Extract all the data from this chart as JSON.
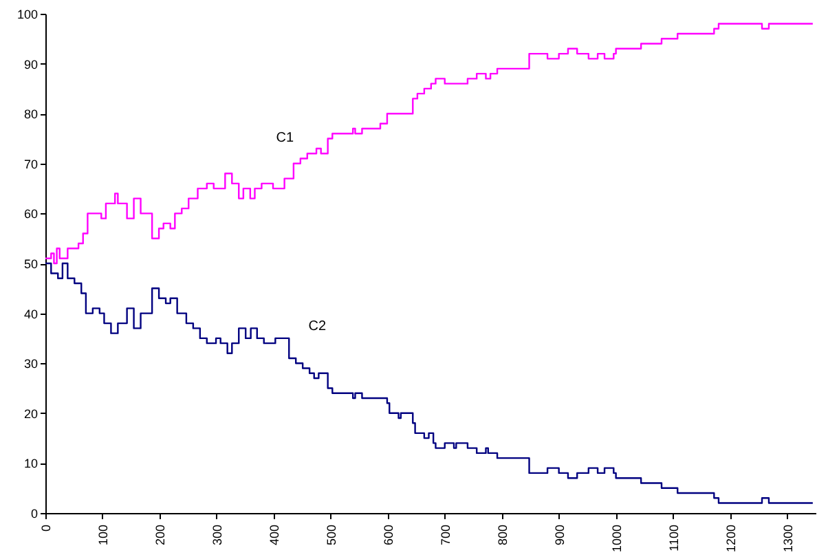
{
  "chart_data": {
    "type": "step",
    "xlim": [
      0,
      1350
    ],
    "xticks": [
      0,
      100,
      200,
      300,
      400,
      500,
      600,
      700,
      800,
      900,
      1000,
      1100,
      1200,
      1300
    ],
    "ylim": [
      0,
      100
    ],
    "yticks": [
      0,
      10,
      20,
      30,
      40,
      50,
      60,
      70,
      80,
      90,
      100
    ],
    "grid": false,
    "marker": "none",
    "line_style": "solid",
    "series": [
      {
        "name": "C1",
        "color": "#ff00ff",
        "x": [
          0,
          10,
          15,
          20,
          25,
          30,
          39,
          58,
          66,
          74,
          90,
          98,
          106,
          122,
          127,
          143,
          155,
          167,
          187,
          199,
          207,
          219,
          227,
          239,
          251,
          267,
          283,
          295,
          315,
          327,
          339,
          347,
          359,
          367,
          379,
          399,
          419,
          435,
          447,
          459,
          475,
          483,
          495,
          503,
          539,
          543,
          555,
          587,
          599,
          644,
          652,
          664,
          676,
          684,
          700,
          740,
          756,
          772,
          780,
          792,
          848,
          880,
          900,
          916,
          932,
          952,
          968,
          980,
          996,
          1000,
          1044,
          1080,
          1108,
          1172,
          1180,
          1256,
          1268,
          1345
        ],
        "values": [
          51,
          52,
          50,
          53,
          51,
          51,
          53,
          54,
          56,
          60,
          60,
          59,
          62,
          64,
          62,
          59,
          63,
          60,
          55,
          57,
          58,
          57,
          60,
          61,
          63,
          65,
          66,
          65,
          68,
          66,
          63,
          65,
          63,
          65,
          66,
          65,
          67,
          70,
          71,
          72,
          73,
          72,
          75,
          76,
          77,
          76,
          77,
          78,
          80,
          83,
          84,
          85,
          86,
          87,
          86,
          87,
          88,
          87,
          88,
          89,
          92,
          91,
          92,
          93,
          92,
          91,
          92,
          91,
          92,
          93,
          94,
          95,
          96,
          97,
          98,
          97,
          98,
          98
        ]
      },
      {
        "name": "C2",
        "color": "#000080",
        "x": [
          0,
          10,
          22,
          30,
          39,
          51,
          63,
          71,
          83,
          95,
          103,
          115,
          127,
          143,
          155,
          167,
          187,
          199,
          211,
          219,
          231,
          247,
          259,
          271,
          283,
          299,
          307,
          319,
          327,
          339,
          351,
          360,
          371,
          383,
          403,
          427,
          439,
          451,
          463,
          471,
          479,
          495,
          503,
          539,
          543,
          555,
          599,
          603,
          619,
          623,
          644,
          648,
          664,
          672,
          680,
          684,
          700,
          716,
          720,
          740,
          756,
          772,
          776,
          792,
          848,
          880,
          900,
          916,
          932,
          952,
          968,
          980,
          996,
          1000,
          1044,
          1080,
          1108,
          1172,
          1180,
          1256,
          1268,
          1345
        ],
        "values": [
          50,
          48,
          47,
          50,
          47,
          46,
          44,
          40,
          41,
          40,
          38,
          36,
          38,
          41,
          37,
          40,
          45,
          43,
          42,
          43,
          40,
          38,
          37,
          35,
          34,
          35,
          34,
          32,
          34,
          37,
          35,
          37,
          35,
          34,
          35,
          31,
          30,
          29,
          28,
          27,
          28,
          25,
          24,
          23,
          24,
          23,
          22,
          20,
          19,
          20,
          18,
          16,
          15,
          16,
          14,
          13,
          14,
          13,
          14,
          13,
          12,
          13,
          12,
          11,
          8,
          9,
          8,
          7,
          8,
          9,
          8,
          9,
          8,
          7,
          6,
          5,
          4,
          3,
          2,
          3,
          2,
          2
        ]
      }
    ]
  }
}
